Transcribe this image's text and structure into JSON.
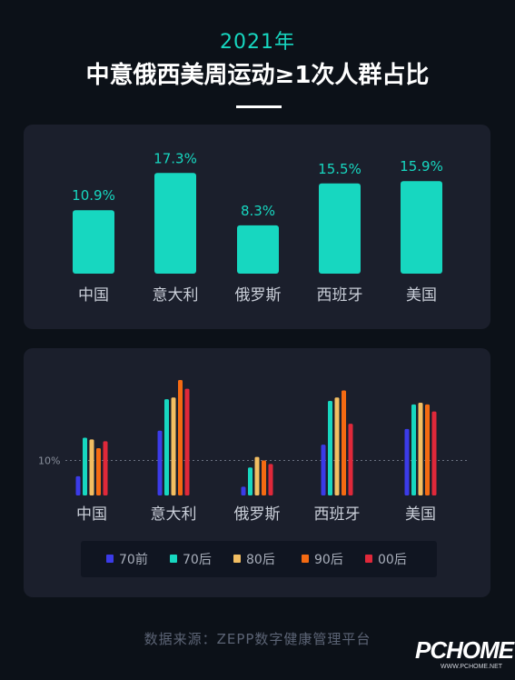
{
  "header": {
    "year": "2021年",
    "title": "中意俄西美周运动≥1次人群占比"
  },
  "chart_data": [
    {
      "type": "bar",
      "categories": [
        "中国",
        "意大利",
        "俄罗斯",
        "西班牙",
        "美国"
      ],
      "values": [
        10.9,
        17.3,
        8.3,
        15.5,
        15.9
      ],
      "value_labels": [
        "10.9%",
        "17.3%",
        "8.3%",
        "15.5%",
        "15.9%"
      ],
      "title": "",
      "xlabel": "",
      "ylabel": "",
      "ylim": [
        0,
        20
      ],
      "colors": {
        "bar": "#17d7c0",
        "label": "#17d7c0"
      }
    },
    {
      "type": "bar",
      "categories": [
        "中国",
        "意大利",
        "俄罗斯",
        "西班牙",
        "美国"
      ],
      "series": [
        {
          "name": "70前",
          "color": "#3b3be8",
          "values": [
            5.5,
            18.5,
            2.5,
            14.5,
            19
          ]
        },
        {
          "name": "70后",
          "color": "#17d7c0",
          "values": [
            16.5,
            27.5,
            8,
            27,
            26
          ]
        },
        {
          "name": "80后",
          "color": "#f2be62",
          "values": [
            16,
            28,
            11,
            28,
            26.5
          ]
        },
        {
          "name": "90后",
          "color": "#f46a12",
          "values": [
            13.5,
            33,
            10,
            30,
            26
          ]
        },
        {
          "name": "00后",
          "color": "#e0283a",
          "values": [
            15.5,
            30.5,
            9,
            20.5,
            24
          ]
        }
      ],
      "reference_line": {
        "value": 10,
        "label": "10%"
      },
      "ylim": [
        0,
        35
      ],
      "legend_position": "bottom",
      "title": "",
      "xlabel": "",
      "ylabel": ""
    }
  ],
  "footer": {
    "source": "数据来源：ZEPP数字健康管理平台",
    "logo_text": "PCHOME",
    "logo_url": "WWW.PCHOME.NET"
  }
}
